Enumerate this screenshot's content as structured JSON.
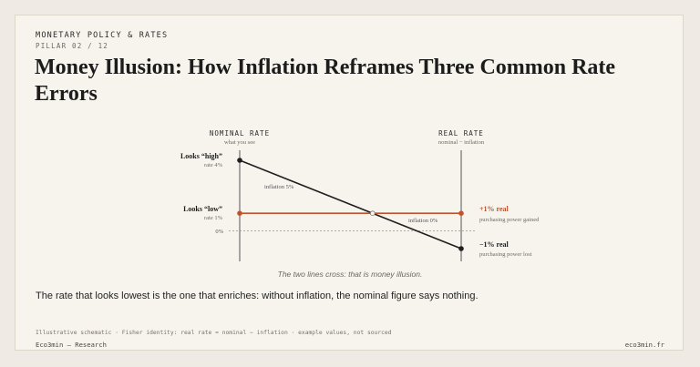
{
  "header": {
    "eyebrow": "MONETARY POLICY & RATES",
    "subeyebrow": "PILLAR 02 / 12",
    "title": "Money Illusion: How Inflation Reframes Three Common Rate Errors"
  },
  "diagram": {
    "nominal_axis": {
      "title": "NOMINAL RATE",
      "subtitle": "what you see"
    },
    "real_axis": {
      "title": "REAL RATE",
      "subtitle": "nominal − inflation"
    },
    "zero_label": "0%",
    "high_case": {
      "left_label": "Looks “high”",
      "left_sublabel": "rate 4%",
      "nominal": 4,
      "inflation": 5,
      "real": -1,
      "line_label": "inflation 5%",
      "right_label": "−1% real",
      "right_sublabel": "purchasing power lost",
      "color": "#1f1f1f"
    },
    "low_case": {
      "left_label": "Looks “low”",
      "left_sublabel": "rate 1%",
      "nominal": 1,
      "inflation": 0,
      "real": 1,
      "line_label": "inflation 0%",
      "right_label": "+1% real",
      "right_sublabel": "purchasing power gained",
      "color": "#c0532e"
    },
    "y_range": [
      -1,
      4
    ],
    "caption": "The two lines cross: that is money illusion."
  },
  "takeaway": "The rate that looks lowest is the one that enriches: without inflation, the nominal figure says nothing.",
  "footer": {
    "note": "Illustrative schematic · Fisher identity: real rate = nominal − inflation · example values, not sourced",
    "brand": "Eco3min — Research",
    "site": "eco3min.fr"
  }
}
